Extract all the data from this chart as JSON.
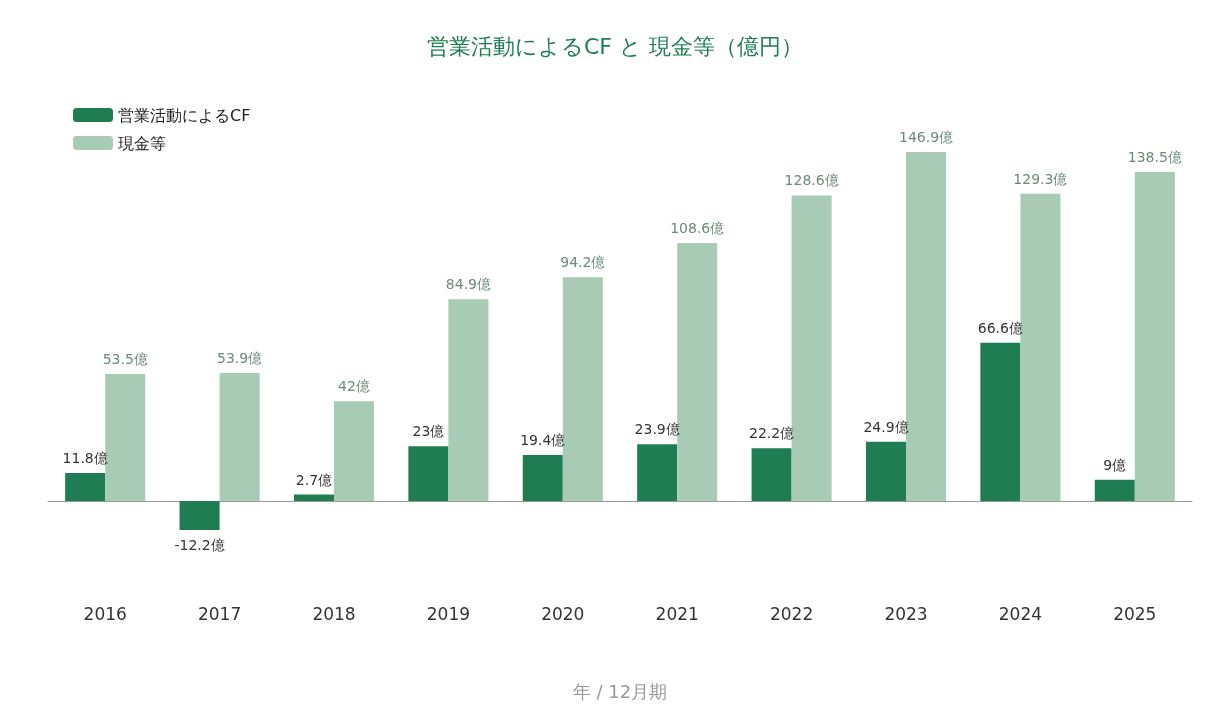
{
  "chart_data": {
    "type": "bar",
    "title": "営業活動によるCF と 現金等（億円）",
    "xlabel": "年 / 12月期",
    "categories": [
      "2016",
      "2017",
      "2018",
      "2019",
      "2020",
      "2021",
      "2022",
      "2023",
      "2024",
      "2025"
    ],
    "series": [
      {
        "name": "営業活動によるCF",
        "color": "#1e7d52",
        "values": [
          11.8,
          -12.2,
          2.7,
          23,
          19.4,
          23.9,
          22.2,
          24.9,
          66.6,
          9
        ],
        "value_labels": [
          "11.8億",
          "-12.2億",
          "2.7億",
          "23億",
          "19.4億",
          "23.9億",
          "22.2億",
          "24.9億",
          "66.6億",
          "9億"
        ]
      },
      {
        "name": "現金等",
        "color": "#a8cbb5",
        "values": [
          53.5,
          53.9,
          42,
          84.9,
          94.2,
          108.6,
          128.6,
          146.9,
          129.3,
          138.5
        ],
        "value_labels": [
          "53.5億",
          "53.9億",
          "42億",
          "84.9億",
          "94.2億",
          "108.6億",
          "128.6億",
          "146.9億",
          "129.3億",
          "138.5億"
        ]
      }
    ],
    "legend": "top left",
    "grid": false
  }
}
